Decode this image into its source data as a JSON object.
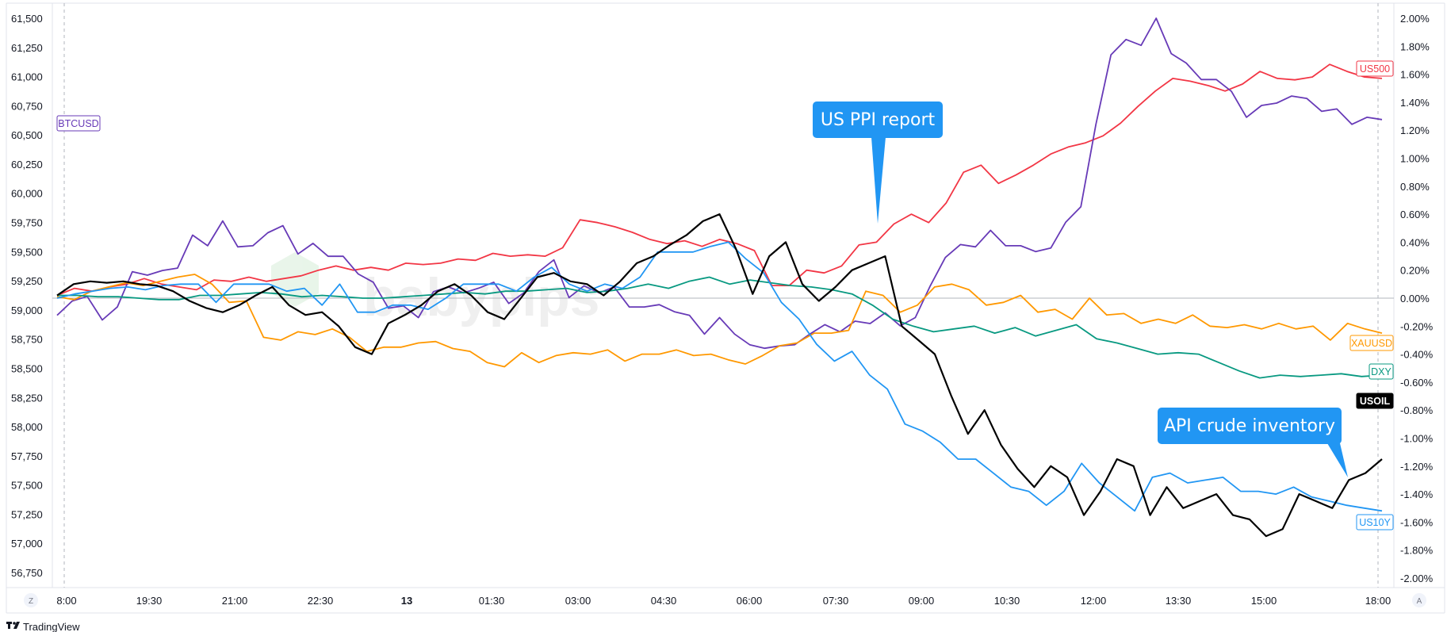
{
  "chart_data": {
    "type": "line",
    "left_axis": {
      "ticks": [
        "61,500",
        "61,250",
        "61,000",
        "60,750",
        "60,500",
        "60,250",
        "60,000",
        "59,750",
        "59,500",
        "59,250",
        "59,000",
        "58,750",
        "58,500",
        "58,250",
        "58,000",
        "57,750",
        "57,500",
        "57,250",
        "57,000",
        "56,750"
      ],
      "range": [
        56750,
        61500
      ]
    },
    "right_axis": {
      "ticks": [
        "2.00%",
        "1.80%",
        "1.60%",
        "1.40%",
        "1.20%",
        "1.00%",
        "0.80%",
        "0.60%",
        "0.40%",
        "0.20%",
        "0.00%",
        "-0.20%",
        "-0.40%",
        "-0.60%",
        "-0.80%",
        "-1.00%",
        "-1.20%",
        "-1.40%",
        "-1.60%",
        "-1.80%",
        "-2.00%"
      ],
      "range": [
        -2.0,
        2.0
      ],
      "unit": "%"
    },
    "x_axis": {
      "ticks": [
        "8:00",
        "19:30",
        "21:00",
        "22:30",
        "13",
        "01:30",
        "03:00",
        "04:30",
        "06:00",
        "07:30",
        "09:00",
        "10:30",
        "12:00",
        "13:30",
        "15:00",
        "18:00"
      ],
      "bold_tick": "13",
      "grid_at": [
        "8:00",
        "18:00"
      ]
    },
    "zero_line": 0.0,
    "series": [
      {
        "name": "US500",
        "color": "#f23645",
        "axis": "right",
        "values": [
          0.02,
          0.07,
          0.05,
          0.08,
          0.1,
          0.14,
          0.1,
          0.08,
          0.06,
          0.13,
          0.12,
          0.15,
          0.12,
          0.14,
          0.16,
          0.2,
          0.23,
          0.2,
          0.22,
          0.2,
          0.25,
          0.24,
          0.25,
          0.28,
          0.27,
          0.32,
          0.3,
          0.31,
          0.3,
          0.36,
          0.56,
          0.54,
          0.51,
          0.47,
          0.42,
          0.39,
          0.41,
          0.37,
          0.42,
          0.39,
          0.34,
          0.09,
          0.09,
          0.2,
          0.18,
          0.23,
          0.38,
          0.4,
          0.53,
          0.6,
          0.54,
          0.68,
          0.9,
          0.95,
          0.82,
          0.88,
          0.95,
          1.03,
          1.08,
          1.11,
          1.16,
          1.25,
          1.37,
          1.48,
          1.57,
          1.55,
          1.52,
          1.48,
          1.53,
          1.62,
          1.57,
          1.56,
          1.58,
          1.67,
          1.62,
          1.58,
          1.57
        ]
      },
      {
        "name": "BTCUSD",
        "color": "#673ab7",
        "axis": "left",
        "values": [
          58980,
          59100,
          59140,
          58940,
          59050,
          59350,
          59320,
          59360,
          59380,
          59660,
          59570,
          59780,
          59560,
          59570,
          59680,
          59740,
          59500,
          59590,
          59480,
          59480,
          59330,
          59260,
          59040,
          59060,
          58960,
          59180,
          59220,
          59170,
          59210,
          59260,
          59080,
          59170,
          59350,
          59450,
          59130,
          59230,
          59170,
          59220,
          59050,
          59050,
          59070,
          59010,
          58980,
          58820,
          58960,
          58820,
          58730,
          58700,
          58720,
          58730,
          58820,
          58900,
          58840,
          58930,
          58910,
          59000,
          58890,
          58960,
          59230,
          59470,
          59580,
          59560,
          59700,
          59570,
          59570,
          59520,
          59550,
          59770,
          59900,
          60600,
          61190,
          61320,
          61270,
          61500,
          61200,
          61120,
          60980,
          60980,
          60880,
          60660,
          60760,
          60780,
          60840,
          60820,
          60710,
          60730,
          60600,
          60660,
          60640
        ]
      },
      {
        "name": "XAUUSD",
        "color": "#ff9800",
        "axis": "right",
        "values": [
          0.01,
          -0.01,
          0.05,
          0.08,
          0.11,
          0.09,
          0.12,
          0.15,
          0.17,
          0.1,
          -0.03,
          -0.02,
          -0.28,
          -0.3,
          -0.24,
          -0.26,
          -0.22,
          -0.28,
          -0.38,
          -0.35,
          -0.35,
          -0.32,
          -0.31,
          -0.36,
          -0.38,
          -0.46,
          -0.49,
          -0.39,
          -0.46,
          -0.41,
          -0.39,
          -0.4,
          -0.37,
          -0.45,
          -0.4,
          -0.4,
          -0.37,
          -0.41,
          -0.4,
          -0.44,
          -0.47,
          -0.41,
          -0.34,
          -0.32,
          -0.25,
          -0.25,
          -0.23,
          0.05,
          0.02,
          -0.1,
          -0.05,
          0.08,
          0.1,
          0.06,
          -0.05,
          -0.03,
          0.02,
          -0.1,
          -0.08,
          -0.15,
          0.0,
          -0.12,
          -0.11,
          -0.18,
          -0.15,
          -0.18,
          -0.12,
          -0.2,
          -0.21,
          -0.19,
          -0.22,
          -0.18,
          -0.22,
          -0.2,
          -0.3,
          -0.18,
          -0.22,
          -0.25
        ]
      },
      {
        "name": "DXY",
        "color": "#089981",
        "axis": "right",
        "values": [
          0.02,
          0.02,
          0.01,
          0.01,
          0.0,
          -0.01,
          -0.01,
          0.02,
          0.02,
          0.03,
          0.04,
          0.03,
          0.01,
          0.02,
          0.01,
          0.0,
          0.0,
          0.01,
          0.02,
          0.03,
          0.04,
          0.03,
          0.05,
          0.05,
          0.06,
          0.07,
          0.04,
          0.05,
          0.07,
          0.1,
          0.07,
          0.12,
          0.15,
          0.1,
          0.13,
          0.11,
          0.09,
          0.08,
          0.06,
          0.03,
          -0.05,
          -0.15,
          -0.2,
          -0.24,
          -0.22,
          -0.2,
          -0.25,
          -0.21,
          -0.27,
          -0.23,
          -0.19,
          -0.29,
          -0.32,
          -0.36,
          -0.4,
          -0.39,
          -0.4,
          -0.46,
          -0.52,
          -0.57,
          -0.55,
          -0.56,
          -0.55,
          -0.54,
          -0.56,
          -0.55
        ]
      },
      {
        "name": "US10Y",
        "color": "#2196f3",
        "axis": "right",
        "values": [
          0.0,
          0.03,
          0.05,
          0.07,
          0.08,
          0.06,
          0.09,
          0.1,
          0.1,
          -0.03,
          0.1,
          0.1,
          0.1,
          0.05,
          0.07,
          -0.05,
          0.1,
          -0.1,
          -0.1,
          -0.05,
          -0.05,
          -0.08,
          0.0,
          0.1,
          0.1,
          0.1,
          0.05,
          0.15,
          0.22,
          0.1,
          0.05,
          0.1,
          0.07,
          0.15,
          0.33,
          0.33,
          0.33,
          0.37,
          0.4,
          0.28,
          0.18,
          -0.03,
          -0.15,
          -0.33,
          -0.45,
          -0.38,
          -0.55,
          -0.65,
          -0.9,
          -0.95,
          -1.03,
          -1.15,
          -1.15,
          -1.25,
          -1.35,
          -1.38,
          -1.48,
          -1.38,
          -1.18,
          -1.32,
          -1.42,
          -1.52,
          -1.28,
          -1.25,
          -1.32,
          -1.3,
          -1.28,
          -1.38,
          -1.38,
          -1.4,
          -1.35,
          -1.42,
          -1.45,
          -1.48,
          -1.5,
          -1.52
        ]
      },
      {
        "name": "USOIL",
        "color": "#000000",
        "axis": "right",
        "values": [
          0.02,
          0.1,
          0.12,
          0.11,
          0.12,
          0.1,
          0.09,
          0.05,
          -0.02,
          -0.07,
          -0.1,
          -0.05,
          0.02,
          0.08,
          -0.05,
          -0.12,
          -0.1,
          -0.2,
          -0.35,
          -0.4,
          -0.18,
          -0.12,
          -0.05,
          0.05,
          0.1,
          0.02,
          -0.1,
          -0.15,
          0.0,
          0.15,
          0.18,
          0.12,
          0.1,
          0.02,
          0.12,
          0.25,
          0.3,
          0.38,
          0.45,
          0.55,
          0.6,
          0.35,
          0.03,
          0.3,
          0.4,
          0.1,
          -0.02,
          0.08,
          0.2,
          0.25,
          0.3,
          -0.2,
          -0.3,
          -0.4,
          -0.7,
          -0.97,
          -0.8,
          -1.05,
          -1.22,
          -1.35,
          -1.2,
          -1.28,
          -1.55,
          -1.38,
          -1.15,
          -1.2,
          -1.55,
          -1.35,
          -1.5,
          -1.45,
          -1.4,
          -1.55,
          -1.58,
          -1.7,
          -1.65,
          -1.4,
          -1.45,
          -1.5,
          -1.3,
          -1.25,
          -1.15
        ]
      }
    ],
    "annotations": [
      {
        "text": "US PPI report"
      },
      {
        "text": "API crude inventory"
      }
    ],
    "watermark": "babypips"
  },
  "branding": {
    "logo_text": "TradingView",
    "scale_button_left": "Z",
    "scale_button_right": "A"
  }
}
